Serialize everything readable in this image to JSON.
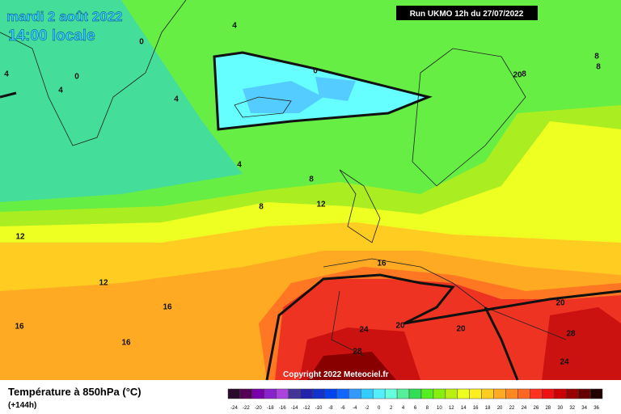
{
  "header": {
    "date": "mardi 2 août 2022",
    "time": "14:00 locale",
    "run": "Run UKMO 12h du 27/07/2022"
  },
  "copyright": "Copyright 2022 Meteociel.fr",
  "legend": {
    "title": "Température à 850hPa (°C)",
    "lead": "(+144h)",
    "ticks": [
      -24,
      -22,
      -20,
      -18,
      -16,
      -14,
      -12,
      -10,
      -8,
      -6,
      -4,
      -2,
      0,
      2,
      4,
      6,
      8,
      10,
      12,
      14,
      16,
      18,
      20,
      22,
      24,
      26,
      28,
      30,
      32,
      34,
      36
    ],
    "colors": [
      "#2a0a2a",
      "#550055",
      "#7700aa",
      "#8822cc",
      "#aa44dd",
      "#443399",
      "#2222aa",
      "#1133cc",
      "#0044ee",
      "#1166ff",
      "#3399ff",
      "#33ccff",
      "#55eeff",
      "#66ffdd",
      "#55ee99",
      "#33dd55",
      "#55ee22",
      "#88ee11",
      "#bbee11",
      "#eeff22",
      "#ffee22",
      "#ffcc22",
      "#ffaa22",
      "#ff8822",
      "#ff6622",
      "#ff3322",
      "#ee1111",
      "#cc0000",
      "#990000",
      "#660000",
      "#220000"
    ]
  },
  "contour_labels": [
    4,
    0,
    4,
    0,
    4,
    4,
    4,
    0,
    8,
    8,
    8,
    12,
    12,
    12,
    16,
    16,
    16,
    16,
    20,
    24,
    20,
    20,
    28,
    28,
    24,
    20,
    8,
    8
  ]
}
